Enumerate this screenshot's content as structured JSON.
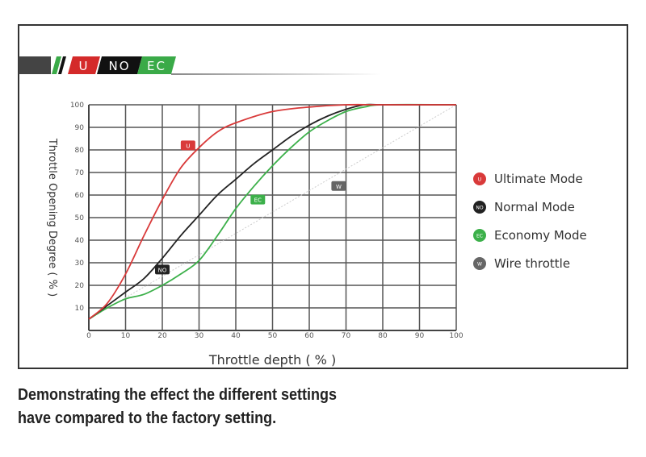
{
  "banner": {
    "labels": [
      "U",
      "NO",
      "EC"
    ],
    "colors": [
      "#d42a2a",
      "#111111",
      "#3aaa48"
    ]
  },
  "caption": {
    "line1": "Demonstrating the effect the different settings",
    "line2": "have compared to the factory setting."
  },
  "chart_data": {
    "type": "line",
    "xlabel": "Throttle depth ( % )",
    "ylabel": "Throttle Opening Degree ( % )",
    "xlim": [
      0,
      100
    ],
    "ylim": [
      0,
      100
    ],
    "xticks": [
      "0",
      "10",
      "20",
      "30",
      "40",
      "50",
      "60",
      "70",
      "80",
      "90",
      "100"
    ],
    "yticks": [
      "10",
      "20",
      "30",
      "40",
      "50",
      "60",
      "70",
      "80",
      "90",
      "100"
    ],
    "grid": true,
    "legend_placement": "right",
    "series": [
      {
        "name": "Ultimate Mode",
        "badge": "U",
        "color": "#d93a3a",
        "label_at": [
          27,
          82
        ],
        "x": [
          0,
          5,
          10,
          15,
          20,
          25,
          30,
          35,
          40,
          50,
          60,
          70,
          80,
          100
        ],
        "y": [
          5,
          12,
          25,
          42,
          58,
          72,
          81,
          88,
          92,
          97,
          99,
          100,
          100,
          100
        ]
      },
      {
        "name": "Normal Mode",
        "badge": "NO",
        "color": "#222222",
        "label_at": [
          20,
          27
        ],
        "x": [
          0,
          5,
          10,
          15,
          20,
          25,
          30,
          35,
          40,
          45,
          50,
          55,
          60,
          65,
          70,
          75,
          80,
          100
        ],
        "y": [
          5,
          11,
          17,
          23,
          32,
          42,
          51,
          60,
          67,
          74,
          80,
          86,
          91,
          95,
          98,
          100,
          100,
          100
        ]
      },
      {
        "name": "Economy Mode",
        "badge": "EC",
        "color": "#3cb04a",
        "label_at": [
          46,
          58
        ],
        "x": [
          0,
          5,
          10,
          15,
          20,
          25,
          30,
          35,
          40,
          45,
          50,
          55,
          60,
          65,
          70,
          75,
          80,
          100
        ],
        "y": [
          5,
          10,
          14,
          16,
          20,
          25,
          31,
          42,
          54,
          64,
          73,
          81,
          88,
          93,
          97,
          99,
          100,
          100
        ]
      },
      {
        "name": "Wire throttle",
        "badge": "W",
        "color": "#666666",
        "label_at": [
          68,
          64
        ],
        "x": [
          0,
          100
        ],
        "y": [
          5,
          100
        ]
      }
    ]
  }
}
